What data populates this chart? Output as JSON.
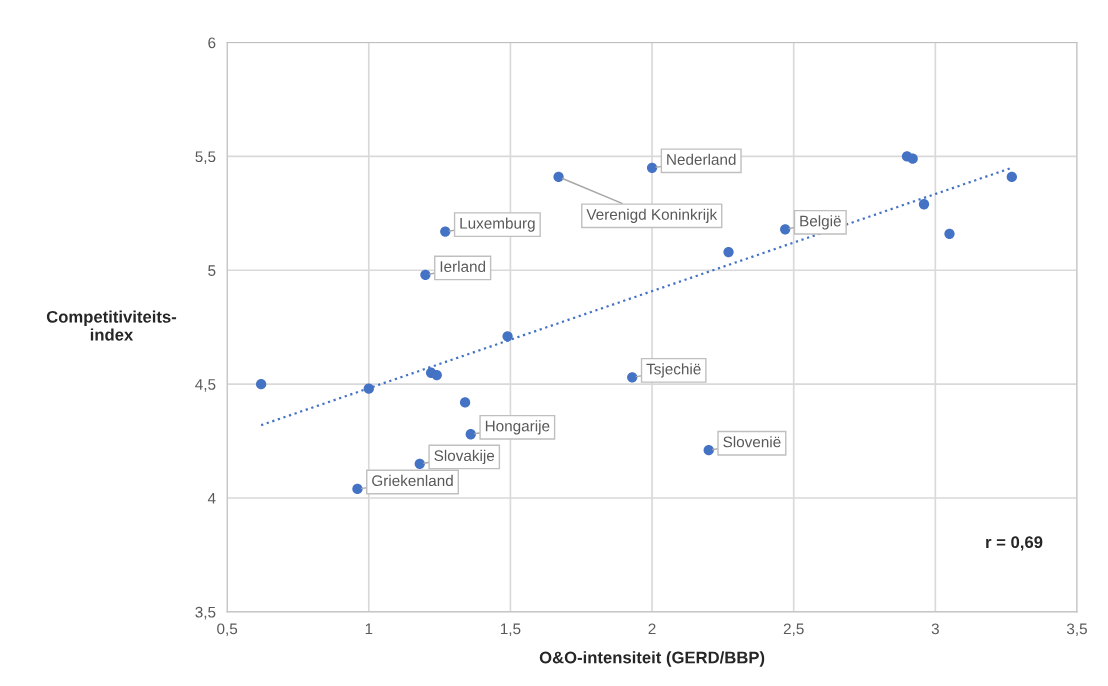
{
  "chart_data": {
    "type": "scatter",
    "xlabel": "O&O-intensiteit (GERD/BBP)",
    "ylabel": "Competitiviteits-\nindex",
    "xlim": [
      0.5,
      3.5
    ],
    "ylim": [
      3.5,
      6
    ],
    "xticks": [
      {
        "value": 0.5,
        "label": "0,5"
      },
      1,
      {
        "value": 1.5,
        "label": "1,5"
      },
      2,
      {
        "value": 2.5,
        "label": "2,5"
      },
      3,
      {
        "value": 3.5,
        "label": "3,5"
      }
    ],
    "yticks": [
      {
        "value": 3.5,
        "label": "3,5"
      },
      4,
      {
        "value": 4.5,
        "label": "4,5"
      },
      5,
      {
        "value": 5.5,
        "label": "5,5"
      },
      6
    ],
    "grid": true,
    "marker": "circle",
    "series": [
      {
        "color": "#4472c4",
        "x": [
          0.62,
          1.0,
          0.96,
          1.18,
          1.2,
          1.22,
          1.24,
          1.27,
          1.34,
          1.36,
          1.49,
          1.67,
          1.93,
          2.0,
          2.2,
          2.27,
          2.47,
          2.9,
          2.92,
          2.96,
          3.05,
          3.27
        ],
        "values": [
          4.5,
          4.48,
          4.04,
          4.15,
          4.98,
          4.55,
          4.54,
          5.17,
          4.42,
          4.28,
          4.71,
          5.41,
          4.53,
          5.45,
          4.21,
          5.08,
          5.18,
          5.5,
          5.49,
          5.29,
          5.16,
          5.41
        ]
      },
      {
        "type": "line",
        "color": "#4472c4",
        "line_style": "dotted",
        "marker": "none",
        "x": [
          0.62,
          3.27
        ],
        "values": [
          4.32,
          5.45
        ]
      }
    ],
    "annotations": [
      {
        "text": "Griekenland",
        "x": 0.96,
        "y": 4.04
      },
      {
        "text": "Slovakije",
        "x": 1.18,
        "y": 4.15
      },
      {
        "text": "Ierland",
        "x": 1.2,
        "y": 4.98
      },
      {
        "text": "Luxemburg",
        "x": 1.27,
        "y": 5.17
      },
      {
        "text": "Hongarije",
        "x": 1.36,
        "y": 4.28
      },
      {
        "text": "Verenigd Koninkrijk",
        "x": 1.67,
        "y": 5.41
      },
      {
        "text": "Tsjechië",
        "x": 1.93,
        "y": 4.53
      },
      {
        "text": "Nederland",
        "x": 2.0,
        "y": 5.45
      },
      {
        "text": "Slovenië",
        "x": 2.2,
        "y": 4.21
      },
      {
        "text": "België",
        "x": 2.47,
        "y": 5.18
      },
      "r = 0,69"
    ]
  }
}
